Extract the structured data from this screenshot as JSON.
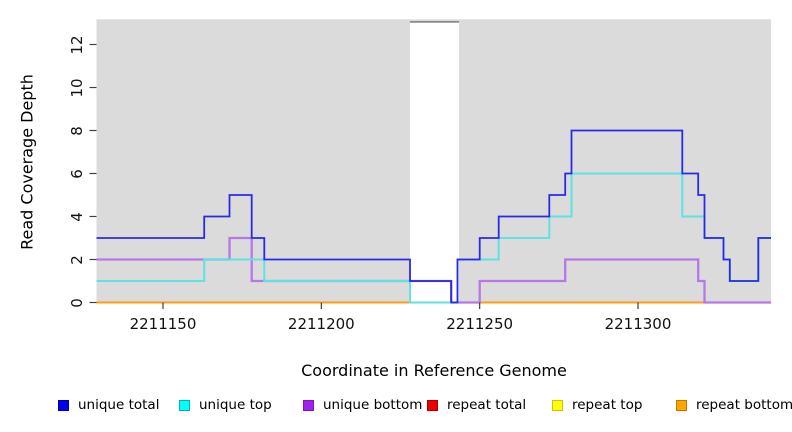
{
  "chart_data": {
    "type": "line",
    "subtype": "step-after-coverage-plot",
    "title": "",
    "xlabel": "Coordinate in Reference Genome",
    "ylabel": "Read Coverage Depth",
    "xlim": [
      2211129,
      2211342
    ],
    "ylim": [
      0,
      13
    ],
    "x_ticks": [
      2211150,
      2211200,
      2211250,
      2211300
    ],
    "x_tick_labels": [
      "2211150",
      "2211200",
      "2211250",
      "2211300"
    ],
    "y_ticks": [
      0,
      2,
      4,
      6,
      8,
      10,
      12
    ],
    "y_tick_labels": [
      "0",
      "2",
      "4",
      "6",
      "8",
      "10",
      "12"
    ],
    "grid": false,
    "plot_background": "#dbdbdb",
    "no_data_region": {
      "x_start": 2211228,
      "x_end": 2211243.5,
      "fill": "#ffffff",
      "top_border": "#8a8a8a"
    },
    "legend_position": "bottom",
    "x_end": 2211342,
    "draw_order": [
      3,
      4,
      5,
      2,
      1,
      0
    ],
    "series": [
      {
        "name": "unique total",
        "line_color": "#2a2ae6",
        "legend_fill": "#0000ee",
        "legend_border": "#0000a0",
        "line_width": 1.8,
        "breakpoints": [
          [
            2211129,
            3
          ],
          [
            2211163,
            4
          ],
          [
            2211171,
            5
          ],
          [
            2211178,
            3
          ],
          [
            2211182,
            2
          ],
          [
            2211228,
            1
          ],
          [
            2211241,
            0
          ],
          [
            2211243,
            2
          ],
          [
            2211250,
            3
          ],
          [
            2211256,
            4
          ],
          [
            2211272,
            5
          ],
          [
            2211277,
            6
          ],
          [
            2211279,
            8
          ],
          [
            2211314,
            6
          ],
          [
            2211319,
            5
          ],
          [
            2211321,
            3
          ],
          [
            2211327,
            2
          ],
          [
            2211329,
            1
          ],
          [
            2211338,
            3
          ]
        ]
      },
      {
        "name": "unique top",
        "line_color": "#5ee2e2",
        "legend_fill": "#00ffff",
        "legend_border": "#00b3b3",
        "line_width": 2.0,
        "breakpoints": [
          [
            2211129,
            1
          ],
          [
            2211163,
            2
          ],
          [
            2211182,
            1
          ],
          [
            2211228,
            0
          ],
          [
            2211243,
            2
          ],
          [
            2211256,
            3
          ],
          [
            2211272,
            4
          ],
          [
            2211279,
            6
          ],
          [
            2211314,
            4
          ],
          [
            2211321,
            3
          ],
          [
            2211327,
            2
          ],
          [
            2211329,
            1
          ],
          [
            2211338,
            3
          ]
        ]
      },
      {
        "name": "unique bottom",
        "line_color": "#b678e8",
        "legend_fill": "#a020f0",
        "legend_border": "#7a18b8",
        "line_width": 2.3,
        "breakpoints": [
          [
            2211129,
            2
          ],
          [
            2211171,
            3
          ],
          [
            2211178,
            1
          ],
          [
            2211241,
            0
          ],
          [
            2211250,
            1
          ],
          [
            2211277,
            2
          ],
          [
            2211319,
            1
          ],
          [
            2211321,
            0
          ]
        ]
      },
      {
        "name": "repeat total",
        "line_color": "#dd2020",
        "legend_fill": "#ee0000",
        "legend_border": "#b00000",
        "line_width": 1.8,
        "breakpoints": [
          [
            2211129,
            0
          ]
        ]
      },
      {
        "name": "repeat top",
        "line_color": "#e8e800",
        "legend_fill": "#ffff00",
        "legend_border": "#c8c800",
        "line_width": 1.8,
        "breakpoints": [
          [
            2211129,
            0
          ]
        ]
      },
      {
        "name": "repeat bottom",
        "line_color": "#ff9e14",
        "legend_fill": "#ffa500",
        "legend_border": "#c07800",
        "line_width": 2.0,
        "breakpoints": [
          [
            2211129,
            0
          ]
        ]
      }
    ]
  },
  "axes": {
    "x_title": "Coordinate in Reference Genome",
    "y_title": "Read Coverage Depth"
  },
  "legend": {
    "labels": [
      "unique total",
      "unique top",
      "unique bottom",
      "repeat total",
      "repeat top",
      "repeat bottom"
    ]
  }
}
